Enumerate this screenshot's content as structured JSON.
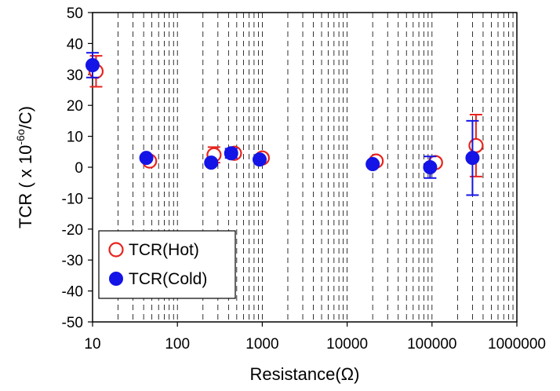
{
  "chart_data": {
    "type": "scatter",
    "x_scale": "log",
    "xlim": [
      10,
      1000000
    ],
    "ylim": [
      -50,
      50
    ],
    "grid": "vertical-dashed",
    "x_ticks": [
      "10",
      "100",
      "1000",
      "10000",
      "100000",
      "1000000"
    ],
    "y_ticks": [
      "50",
      "40",
      "30",
      "20",
      "10",
      "0",
      "-10",
      "-20",
      "-30",
      "-40",
      "-50"
    ],
    "xlabel": "Resistance(Ω)",
    "ylabel_parts": {
      "prefix": "TCR ( x 10",
      "exponent": "-6",
      "suffix": "/C)",
      "degree": "o"
    },
    "legend": {
      "placement": "bottom-left"
    },
    "series": [
      {
        "name": "TCR(Hot)",
        "marker": "open-circle",
        "color": "#e8231e",
        "x": [
          11,
          47,
          270,
          470,
          1000,
          22000,
          110000,
          330000
        ],
        "y": [
          31,
          2,
          4,
          4.5,
          3,
          2,
          1.5,
          7
        ],
        "err": [
          5,
          0,
          2.5,
          1,
          0,
          0,
          0,
          10
        ]
      },
      {
        "name": "TCR(Cold)",
        "marker": "filled-circle",
        "color": "#1414e6",
        "x": [
          10,
          43,
          250,
          430,
          930,
          20000,
          95000,
          300000
        ],
        "y": [
          33,
          3,
          1.5,
          4.5,
          2.5,
          1,
          0,
          3
        ],
        "err": [
          4,
          0,
          0,
          1.5,
          0,
          0,
          3.5,
          12
        ]
      }
    ]
  }
}
